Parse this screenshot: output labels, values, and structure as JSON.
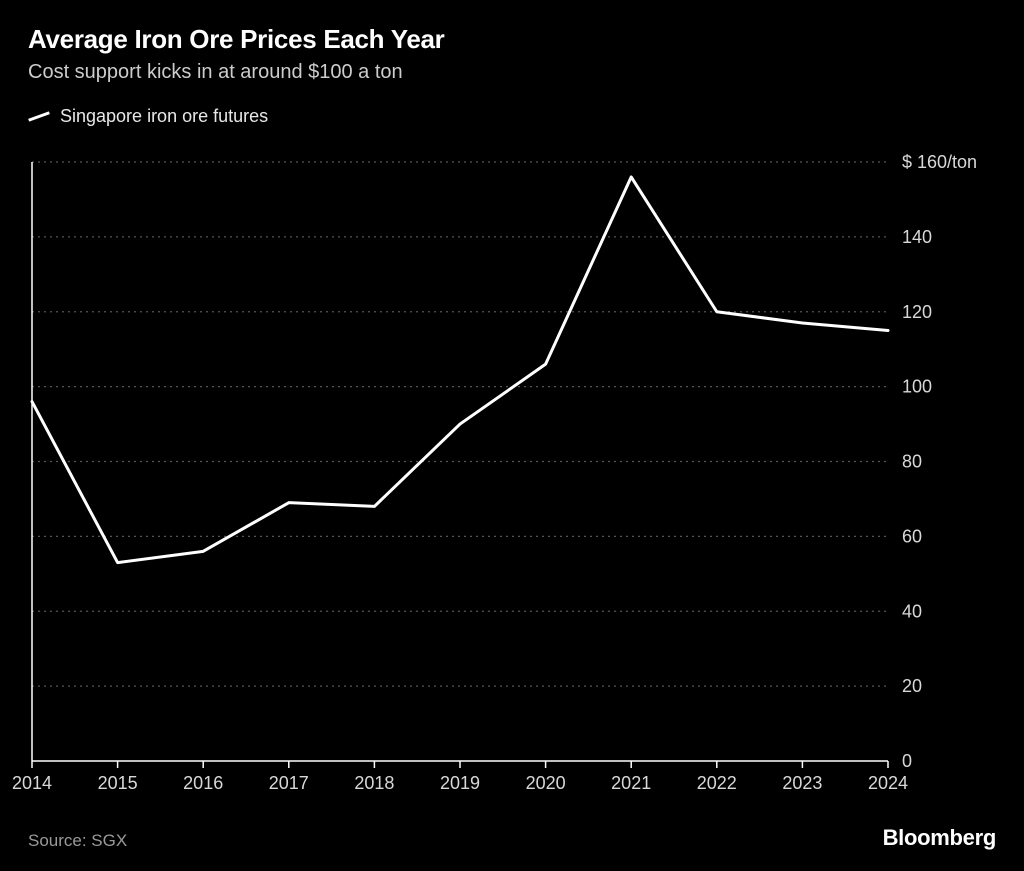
{
  "header": {
    "title": "Average Iron Ore Prices Each Year",
    "subtitle": "Cost support kicks in at around $100 a ton"
  },
  "legend": {
    "label": "Singapore iron ore futures",
    "swatch_color": "#ffffff"
  },
  "chart": {
    "type": "line",
    "background_color": "#000000",
    "grid_color": "#555555",
    "grid_dash": "2,4",
    "axis_color": "#ffffff",
    "tick_font_size": 18,
    "tick_color": "#d8d8d8",
    "line_color": "#ffffff",
    "line_width": 3,
    "x": {
      "categories": [
        "2014",
        "2015",
        "2016",
        "2017",
        "2018",
        "2019",
        "2020",
        "2021",
        "2022",
        "2023",
        "2024"
      ],
      "axis_line": true
    },
    "y": {
      "min": 0,
      "max": 160,
      "tick_step": 20,
      "unit_label": "$ 160/ton",
      "axis_line_left": true
    },
    "series": [
      {
        "name": "Singapore iron ore futures",
        "values": [
          96,
          53,
          56,
          69,
          68,
          90,
          106,
          156,
          120,
          117,
          115
        ]
      }
    ]
  },
  "footer": {
    "source": "Source: SGX",
    "brand": "Bloomberg"
  }
}
